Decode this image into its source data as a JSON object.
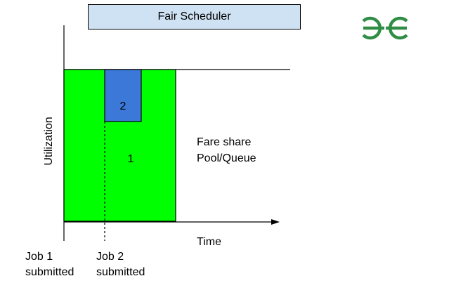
{
  "title": "Fair Scheduler",
  "logo": {
    "icon": "geeksforgeeks-logo-icon",
    "color": "#2f8d46"
  },
  "axes": {
    "y_label": "Utilization",
    "x_label": "Time"
  },
  "blocks": [
    {
      "id": "job-1",
      "label": "1",
      "color": "#00ff00"
    },
    {
      "id": "job-2",
      "label": "2",
      "color": "#3c78d8"
    }
  ],
  "pool_label": {
    "line1": "Fare share",
    "line2": "Pool/Queue"
  },
  "events": [
    {
      "line1": "Job 1",
      "line2": "submitted"
    },
    {
      "line1": "Job 2",
      "line2": "submitted"
    }
  ],
  "colors": {
    "title_box_bg": "#cfe2f3",
    "line": "#000000"
  }
}
